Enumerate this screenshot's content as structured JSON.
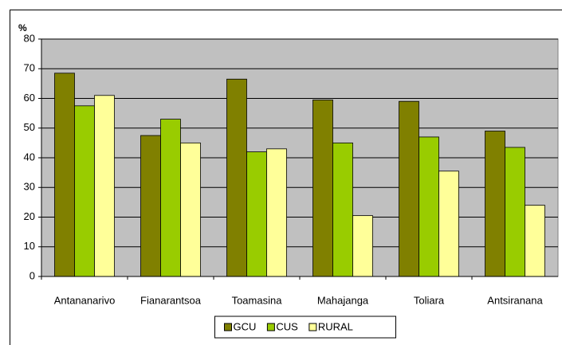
{
  "chart_data": {
    "type": "bar",
    "y_label": "%",
    "categories": [
      "Antananarivo",
      "Fianarantsoa",
      "Toamasina",
      "Mahajanga",
      "Toliara",
      "Antsiranana"
    ],
    "series": [
      {
        "name": "GCU",
        "color": "#808000",
        "values": [
          68.5,
          47.5,
          66.5,
          59.5,
          59,
          49
        ]
      },
      {
        "name": "CUS",
        "color": "#99cc00",
        "values": [
          57.5,
          53,
          42,
          45,
          47,
          43.5
        ]
      },
      {
        "name": "RURAL",
        "color": "#ffff99",
        "values": [
          61,
          45,
          43,
          20.5,
          35.5,
          24
        ]
      }
    ],
    "ylim": [
      0,
      80
    ],
    "yticks": [
      0,
      10,
      20,
      30,
      40,
      50,
      60,
      70,
      80
    ],
    "grid": true,
    "legend": "bottom",
    "plot_background": "#c0c0c0"
  }
}
